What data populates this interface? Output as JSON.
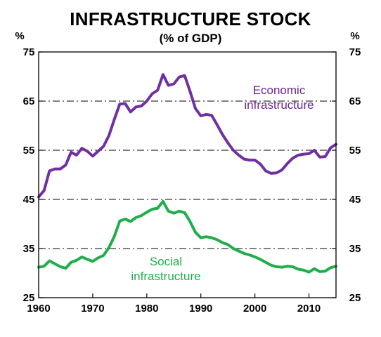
{
  "chart_data": {
    "type": "line",
    "title": "INFRASTRUCTURE STOCK",
    "subtitle": "(% of GDP)",
    "ylabel_left": "%",
    "ylabel_right": "%",
    "xlim": [
      1960,
      2015
    ],
    "ylim": [
      25,
      75
    ],
    "xticks": [
      "1960",
      "1970",
      "1980",
      "1990",
      "2000",
      "2010"
    ],
    "yticks": [
      "25",
      "35",
      "45",
      "55",
      "65",
      "75"
    ],
    "grid": "horizontal dashed",
    "series": [
      {
        "name": "Economic\ninfrastructure",
        "label_lines": [
          "Economic",
          "infrastructure"
        ],
        "color": "#7030A0",
        "points": [
          [
            1960,
            45.5
          ],
          [
            1961,
            46.8
          ],
          [
            1962,
            50.8
          ],
          [
            1963,
            51.2
          ],
          [
            1964,
            51.2
          ],
          [
            1965,
            52.0
          ],
          [
            1966,
            54.6
          ],
          [
            1967,
            54.0
          ],
          [
            1968,
            55.4
          ],
          [
            1969,
            54.8
          ],
          [
            1970,
            53.8
          ],
          [
            1971,
            54.8
          ],
          [
            1972,
            55.8
          ],
          [
            1973,
            58.0
          ],
          [
            1974,
            61.3
          ],
          [
            1975,
            64.4
          ],
          [
            1976,
            64.5
          ],
          [
            1977,
            62.8
          ],
          [
            1978,
            63.8
          ],
          [
            1979,
            64.0
          ],
          [
            1980,
            65.0
          ],
          [
            1981,
            66.5
          ],
          [
            1982,
            67.2
          ],
          [
            1983,
            70.4
          ],
          [
            1984,
            68.2
          ],
          [
            1985,
            68.5
          ],
          [
            1986,
            69.9
          ],
          [
            1987,
            70.2
          ],
          [
            1988,
            67.0
          ],
          [
            1989,
            63.5
          ],
          [
            1990,
            62.0
          ],
          [
            1991,
            62.3
          ],
          [
            1992,
            62.1
          ],
          [
            1993,
            60.2
          ],
          [
            1994,
            58.2
          ],
          [
            1995,
            56.5
          ],
          [
            1996,
            55.0
          ],
          [
            1997,
            54.0
          ],
          [
            1998,
            53.2
          ],
          [
            1999,
            53.0
          ],
          [
            2000,
            53.0
          ],
          [
            2001,
            52.2
          ],
          [
            2002,
            50.8
          ],
          [
            2003,
            50.3
          ],
          [
            2004,
            50.4
          ],
          [
            2005,
            51.0
          ],
          [
            2006,
            52.3
          ],
          [
            2007,
            53.4
          ],
          [
            2008,
            54.0
          ],
          [
            2009,
            54.2
          ],
          [
            2010,
            54.3
          ],
          [
            2011,
            55.0
          ],
          [
            2012,
            53.6
          ],
          [
            2013,
            53.7
          ],
          [
            2014,
            55.5
          ],
          [
            2015,
            56.2
          ]
        ]
      },
      {
        "name": "Social\ninfrastructure",
        "label_lines": [
          "Social",
          "infrastructure"
        ],
        "color": "#1FAE4B",
        "points": [
          [
            1960,
            31.2
          ],
          [
            1961,
            31.4
          ],
          [
            1962,
            32.5
          ],
          [
            1963,
            31.9
          ],
          [
            1964,
            31.3
          ],
          [
            1965,
            31.0
          ],
          [
            1966,
            32.2
          ],
          [
            1967,
            32.6
          ],
          [
            1968,
            33.3
          ],
          [
            1969,
            32.8
          ],
          [
            1970,
            32.4
          ],
          [
            1971,
            33.1
          ],
          [
            1972,
            33.6
          ],
          [
            1973,
            35.2
          ],
          [
            1974,
            37.5
          ],
          [
            1975,
            40.6
          ],
          [
            1976,
            41.0
          ],
          [
            1977,
            40.5
          ],
          [
            1978,
            41.3
          ],
          [
            1979,
            41.7
          ],
          [
            1980,
            42.4
          ],
          [
            1981,
            43.0
          ],
          [
            1982,
            43.2
          ],
          [
            1983,
            44.6
          ],
          [
            1984,
            42.6
          ],
          [
            1985,
            42.2
          ],
          [
            1986,
            42.6
          ],
          [
            1987,
            42.3
          ],
          [
            1988,
            40.5
          ],
          [
            1989,
            38.3
          ],
          [
            1990,
            37.2
          ],
          [
            1991,
            37.4
          ],
          [
            1992,
            37.2
          ],
          [
            1993,
            36.8
          ],
          [
            1994,
            36.2
          ],
          [
            1995,
            35.8
          ],
          [
            1996,
            35.0
          ],
          [
            1997,
            34.5
          ],
          [
            1998,
            34.0
          ],
          [
            1999,
            33.7
          ],
          [
            2000,
            33.3
          ],
          [
            2001,
            32.8
          ],
          [
            2002,
            32.2
          ],
          [
            2003,
            31.6
          ],
          [
            2004,
            31.3
          ],
          [
            2005,
            31.2
          ],
          [
            2006,
            31.4
          ],
          [
            2007,
            31.3
          ],
          [
            2008,
            30.8
          ],
          [
            2009,
            30.6
          ],
          [
            2010,
            30.2
          ],
          [
            2011,
            30.9
          ],
          [
            2012,
            30.3
          ],
          [
            2013,
            30.4
          ],
          [
            2014,
            31.1
          ],
          [
            2015,
            31.4
          ]
        ]
      }
    ]
  }
}
